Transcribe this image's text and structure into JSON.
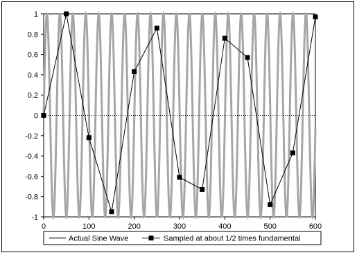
{
  "chart_data": {
    "type": "line",
    "title": "",
    "xlabel": "",
    "ylabel": "",
    "xlim": [
      0,
      600
    ],
    "ylim": [
      -1,
      1
    ],
    "x_ticks": [
      0,
      100,
      200,
      300,
      400,
      500,
      600
    ],
    "y_ticks": [
      -1,
      -0.8,
      -0.6,
      -0.4,
      -0.2,
      0,
      0.2,
      0.4,
      0.6,
      0.8,
      1
    ],
    "x_tick_labels": [
      "0",
      "100",
      "200",
      "300",
      "400",
      "500",
      "600"
    ],
    "y_tick_labels": [
      "-1",
      "-0.8",
      "-0.6",
      "-0.4",
      "-0.2",
      "0",
      "0.2",
      "0.4",
      "0.6",
      "0.8",
      "1"
    ],
    "grid": false,
    "zero_line": "dotted",
    "legend_position": "bottom",
    "series": [
      {
        "name": "Actual Sine Wave",
        "style": "line",
        "color": "#a6a6a6",
        "function": "sine",
        "period": 28.6,
        "amplitude": 1
      },
      {
        "name": "Sampled at about 1/2 times fundamental",
        "style": "line-with-square-markers",
        "color": "#000000",
        "x": [
          0,
          50,
          100,
          150,
          200,
          250,
          300,
          350,
          400,
          450,
          500,
          550,
          600
        ],
        "values": [
          0,
          1.0,
          -0.22,
          -0.95,
          0.43,
          0.86,
          -0.61,
          -0.73,
          0.76,
          0.57,
          -0.88,
          -0.37,
          0.97
        ]
      }
    ]
  }
}
